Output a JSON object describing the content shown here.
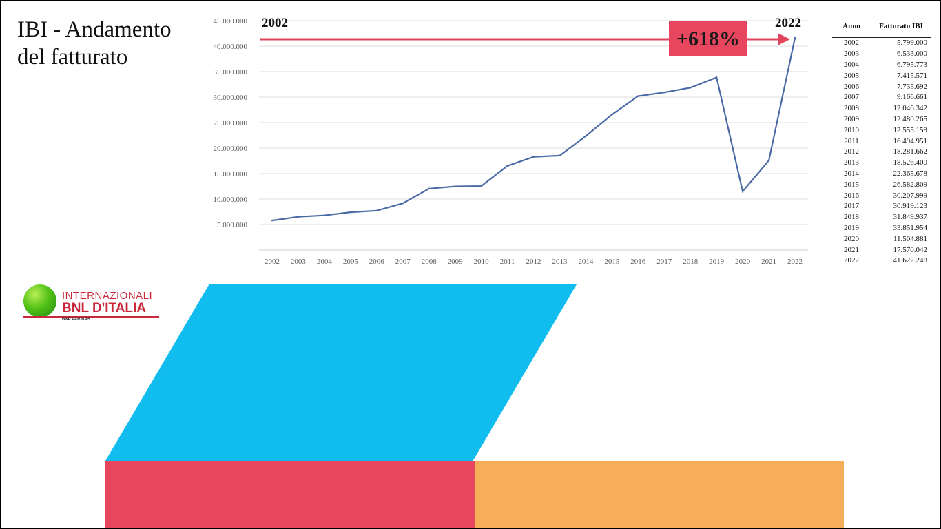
{
  "slide": {
    "title": "IBI - Andamento\ndel fatturato",
    "start_label": "2002",
    "end_label": "2022",
    "growth_badge": "+618%"
  },
  "logo": {
    "line1": "INTERNAZIONALI",
    "line2": "BNL D'ITALIA",
    "line3": "BNP PARIBAS"
  },
  "table": {
    "header_year": "Anno",
    "header_value": "Fatturato IBI",
    "rows": [
      {
        "year": "2002",
        "value": "5.799.000"
      },
      {
        "year": "2003",
        "value": "6.533.000"
      },
      {
        "year": "2004",
        "value": "6.795.773"
      },
      {
        "year": "2005",
        "value": "7.415.571"
      },
      {
        "year": "2006",
        "value": "7.735.692"
      },
      {
        "year": "2007",
        "value": "9.166.661"
      },
      {
        "year": "2008",
        "value": "12.046.342"
      },
      {
        "year": "2009",
        "value": "12.480.265"
      },
      {
        "year": "2010",
        "value": "12.555.159"
      },
      {
        "year": "2011",
        "value": "16.494.951"
      },
      {
        "year": "2012",
        "value": "18.281.662"
      },
      {
        "year": "2013",
        "value": "18.526.400"
      },
      {
        "year": "2014",
        "value": "22.365.678"
      },
      {
        "year": "2015",
        "value": "26.582.809"
      },
      {
        "year": "2016",
        "value": "30.207.999"
      },
      {
        "year": "2017",
        "value": "30.919.123"
      },
      {
        "year": "2018",
        "value": "31.849.937"
      },
      {
        "year": "2019",
        "value": "33.851.954"
      },
      {
        "year": "2020",
        "value": "11.504.881"
      },
      {
        "year": "2021",
        "value": "17.570.042"
      },
      {
        "year": "2022",
        "value": "41.622.248"
      }
    ]
  },
  "chart_data": {
    "type": "line",
    "title": "",
    "xlabel": "",
    "ylabel": "",
    "categories": [
      "2002",
      "2003",
      "2004",
      "2005",
      "2006",
      "2007",
      "2008",
      "2009",
      "2010",
      "2011",
      "2012",
      "2013",
      "2014",
      "2015",
      "2016",
      "2017",
      "2018",
      "2019",
      "2020",
      "2021",
      "2022"
    ],
    "series": [
      {
        "values": [
          5799000,
          6533000,
          6795773,
          7415571,
          7735692,
          9166661,
          12046342,
          12480265,
          12555159,
          16494951,
          18281662,
          18526400,
          22365678,
          26582809,
          30207999,
          30919123,
          31849937,
          33851954,
          11504881,
          17570042,
          41622248
        ]
      }
    ],
    "ylim": [
      0,
      45000000
    ],
    "ytick_labels": [
      "-",
      "5.000.000",
      "10.000.000",
      "15.000.000",
      "20.000.000",
      "25.000.000",
      "30.000.000",
      "35.000.000",
      "40.000.000",
      "45.000.000"
    ],
    "grid": true,
    "legend": "none",
    "line_color": "#4a6aa5",
    "arrow_color": "#e0455d"
  }
}
